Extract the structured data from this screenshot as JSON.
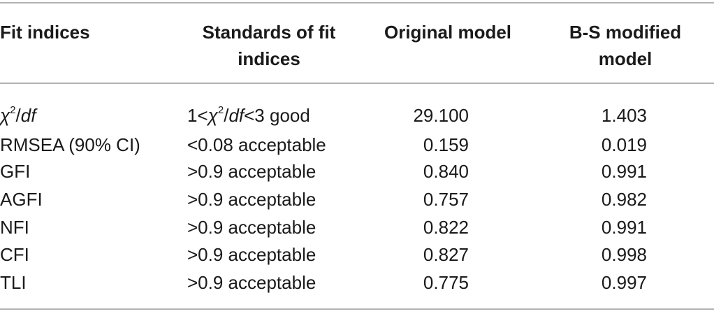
{
  "table": {
    "headers": {
      "fit_indices": "Fit indices",
      "standards_line1": "Standards of fit",
      "standards_line2": "indices",
      "original": "Original model",
      "bs_line1": "B-S modified",
      "bs_line2": "model"
    },
    "chi": {
      "symbol": "χ",
      "exp": "2",
      "slash": "/",
      "df": "df",
      "std_pre": "1<",
      "std_sym": "χ",
      "std_exp": "2",
      "std_slash": "/",
      "std_df": "df",
      "std_post": "<3 good",
      "original": "29.100",
      "bs": "1.403"
    },
    "rows": [
      {
        "index": "RMSEA (90% CI)",
        "standard": "<0.08 acceptable",
        "original": "0.159",
        "bs": "0.019"
      },
      {
        "index": "GFI",
        "standard": ">0.9 acceptable",
        "original": "0.840",
        "bs": "0.991"
      },
      {
        "index": "AGFI",
        "standard": ">0.9 acceptable",
        "original": "0.757",
        "bs": "0.982"
      },
      {
        "index": "NFI",
        "standard": ">0.9 acceptable",
        "original": "0.822",
        "bs": "0.991"
      },
      {
        "index": "CFI",
        "standard": ">0.9 acceptable",
        "original": "0.827",
        "bs": "0.998"
      },
      {
        "index": "TLI",
        "standard": ">0.9 acceptable",
        "original": "0.775",
        "bs": "0.997"
      }
    ]
  }
}
